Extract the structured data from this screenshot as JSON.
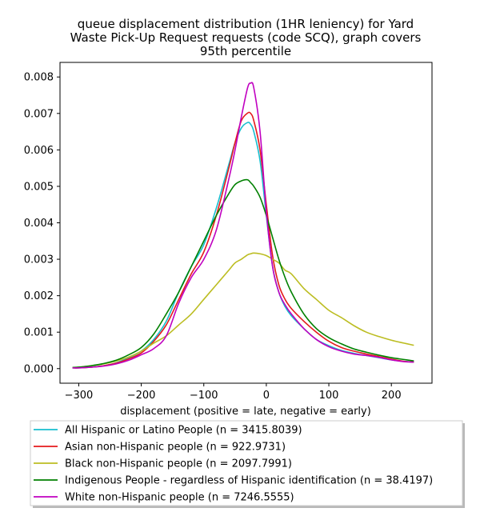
{
  "chart_data": {
    "type": "line",
    "title_lines": [
      "queue displacement distribution (1HR leniency) for Yard",
      "Waste Pick-Up Request  requests (code SCQ), graph covers",
      "95th percentile"
    ],
    "xlabel": "displacement (positive = late, negative = early)",
    "ylabel": "",
    "xlim": [
      -330,
      265
    ],
    "ylim": [
      -0.0004,
      0.0084
    ],
    "xticks": [
      -300,
      -200,
      -100,
      0,
      100,
      200
    ],
    "xtick_labels": [
      "−300",
      "−200",
      "−100",
      "0",
      "100",
      "200"
    ],
    "yticks": [
      0,
      0.001,
      0.002,
      0.003,
      0.004,
      0.005,
      0.006,
      0.007,
      0.008
    ],
    "ytick_labels": [
      "0.000",
      "0.001",
      "0.002",
      "0.003",
      "0.004",
      "0.005",
      "0.006",
      "0.007",
      "0.008"
    ],
    "grid": false,
    "legend_placement": "below plot",
    "x": [
      -310,
      -300,
      -280,
      -260,
      -240,
      -220,
      -200,
      -180,
      -160,
      -140,
      -120,
      -100,
      -80,
      -60,
      -50,
      -40,
      -30,
      -25,
      -20,
      -10,
      0,
      10,
      20,
      30,
      40,
      60,
      80,
      100,
      120,
      140,
      160,
      180,
      200,
      220,
      236
    ],
    "series": [
      {
        "name": "All Hispanic or Latino People (n = 3415.8039)",
        "color": "#17becf",
        "values": [
          2e-05,
          2e-05,
          4e-05,
          8e-05,
          0.00016,
          0.0003,
          0.00048,
          0.0008,
          0.0013,
          0.0021,
          0.0028,
          0.0034,
          0.0044,
          0.0056,
          0.0062,
          0.0066,
          0.00675,
          0.0067,
          0.0065,
          0.0057,
          0.0042,
          0.0028,
          0.0021,
          0.0017,
          0.00145,
          0.0011,
          0.0008,
          0.00063,
          0.0005,
          0.00042,
          0.00036,
          0.0003,
          0.00024,
          0.0002,
          0.00018
        ]
      },
      {
        "name": "Asian non-Hispanic people (n = 922.9731)",
        "color": "#e41a1c",
        "values": [
          2e-05,
          2e-05,
          4e-05,
          8e-05,
          0.00015,
          0.00027,
          0.00043,
          0.00075,
          0.0012,
          0.0019,
          0.0026,
          0.0032,
          0.0042,
          0.0055,
          0.0062,
          0.0068,
          0.00701,
          0.007,
          0.0068,
          0.006,
          0.0045,
          0.0031,
          0.0023,
          0.0019,
          0.00165,
          0.0013,
          0.001,
          0.00075,
          0.00058,
          0.00048,
          0.0004,
          0.00033,
          0.00026,
          0.0002,
          0.00018
        ]
      },
      {
        "name": "Black non-Hispanic people (n = 2097.7991)",
        "color": "#bcbd22",
        "values": [
          3e-05,
          4e-05,
          8e-05,
          0.00013,
          0.00021,
          0.00032,
          0.00048,
          0.0007,
          0.0009,
          0.0012,
          0.0015,
          0.0019,
          0.0023,
          0.0027,
          0.0029,
          0.003,
          0.00312,
          0.00315,
          0.00317,
          0.00315,
          0.0031,
          0.003,
          0.0029,
          0.0027,
          0.0026,
          0.0022,
          0.0019,
          0.0016,
          0.0014,
          0.00118,
          0.001,
          0.00088,
          0.00078,
          0.0007,
          0.00064
        ]
      },
      {
        "name": "Indigenous People - regardless of Hispanic identification (n = 38.4197)",
        "color": "#008000",
        "values": [
          3e-05,
          4e-05,
          8e-05,
          0.00014,
          0.00023,
          0.00038,
          0.00058,
          0.00095,
          0.0015,
          0.0021,
          0.0028,
          0.0035,
          0.0042,
          0.0048,
          0.00505,
          0.00515,
          0.00518,
          0.0051,
          0.005,
          0.0047,
          0.0042,
          0.0036,
          0.003,
          0.0025,
          0.0021,
          0.0015,
          0.0011,
          0.00085,
          0.00068,
          0.00054,
          0.00045,
          0.00037,
          0.0003,
          0.00025,
          0.00021
        ]
      },
      {
        "name": "White non-Hispanic people (n = 7246.5555)",
        "color": "#c000c0",
        "values": [
          2e-05,
          2e-05,
          4e-05,
          7e-05,
          0.00013,
          0.00023,
          0.00038,
          0.00055,
          0.0009,
          0.0018,
          0.0025,
          0.003,
          0.0038,
          0.0052,
          0.006,
          0.0069,
          0.0077,
          0.00783,
          0.0077,
          0.0065,
          0.0043,
          0.0028,
          0.0021,
          0.00175,
          0.0015,
          0.0011,
          0.0008,
          0.0006,
          0.00048,
          0.0004,
          0.00036,
          0.00031,
          0.00024,
          0.00019,
          0.00018
        ]
      }
    ]
  }
}
